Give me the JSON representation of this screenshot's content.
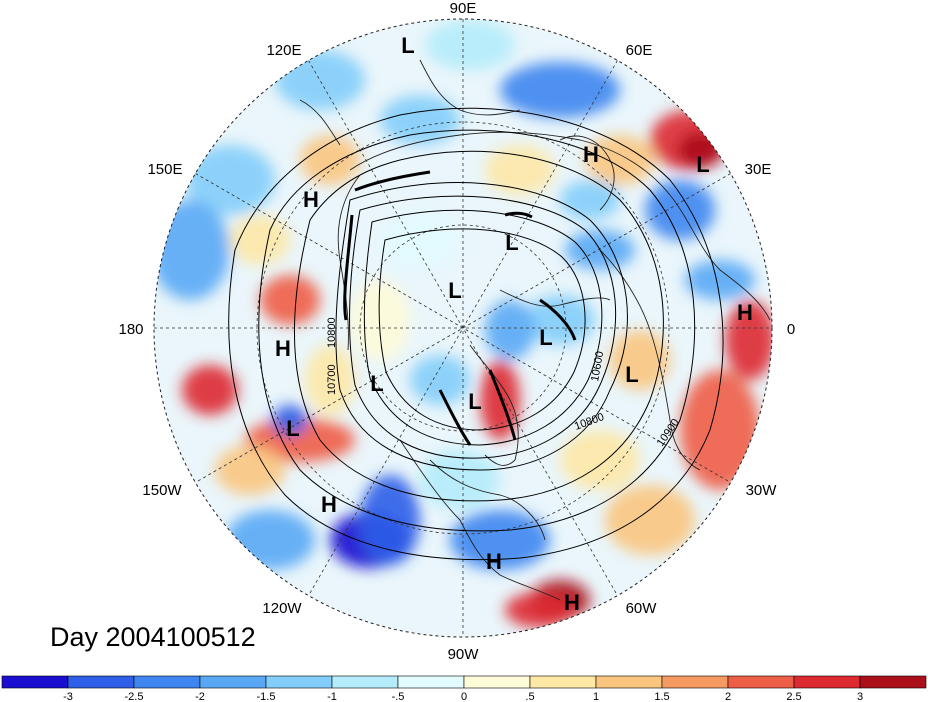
{
  "map": {
    "projection": "north-polar-stereographic",
    "day_label": "Day 2004100512",
    "longitude_labels": [
      {
        "text": "90E"
      },
      {
        "text": "60E"
      },
      {
        "text": "120E"
      },
      {
        "text": "30E"
      },
      {
        "text": "150E"
      },
      {
        "text": "180"
      },
      {
        "text": "0"
      },
      {
        "text": "150W"
      },
      {
        "text": "30W"
      },
      {
        "text": "120W"
      },
      {
        "text": "60W"
      },
      {
        "text": "90W"
      }
    ],
    "pressure_centers": [
      {
        "type": "L"
      },
      {
        "type": "H"
      },
      {
        "type": "L"
      },
      {
        "type": "H"
      },
      {
        "type": "L"
      },
      {
        "type": "L"
      },
      {
        "type": "H"
      },
      {
        "type": "H"
      },
      {
        "type": "L"
      },
      {
        "type": "L"
      },
      {
        "type": "L"
      },
      {
        "type": "L"
      },
      {
        "type": "L"
      },
      {
        "type": "H"
      },
      {
        "type": "H"
      },
      {
        "type": "H"
      }
    ],
    "contour_labels": [
      "10800",
      "10700",
      "10600",
      "10800",
      "10900"
    ]
  },
  "colorbar": {
    "tick_labels": [
      "-3",
      "-2.5",
      "-2",
      "-1.5",
      "-1",
      "-.5",
      "0",
      ".5",
      "1",
      "1.5",
      "2",
      "2.5",
      "3"
    ],
    "colors": [
      "#1a0fd0",
      "#2f5ee8",
      "#3f86f0",
      "#5aa8f5",
      "#83cdfa",
      "#b4ecfb",
      "#e2fbfe",
      "#fefbd8",
      "#fde8a6",
      "#fac57f",
      "#f59a60",
      "#ee5d45",
      "#dd2a30",
      "#aa0f1a"
    ]
  }
}
